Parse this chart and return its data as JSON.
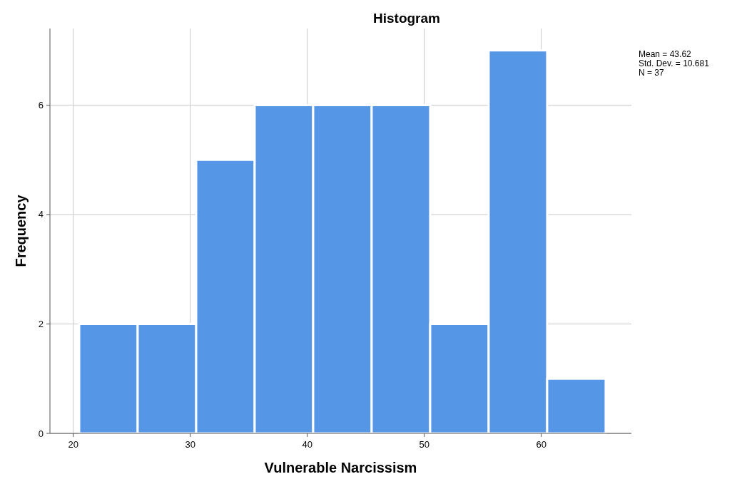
{
  "chart_data": {
    "type": "histogram",
    "title": "Histogram",
    "xlabel": "Vulnerable Narcissism",
    "ylabel": "Frequency",
    "bins": [
      20.5,
      25.5,
      30.5,
      35.5,
      40.5,
      45.5,
      50.5,
      55.5,
      60.5,
      65.5
    ],
    "values": [
      2,
      2,
      5,
      6,
      6,
      6,
      2,
      7,
      1
    ],
    "color": "#5596e6",
    "xlim": [
      18,
      67.7
    ],
    "xticks": [
      20,
      30,
      40,
      50,
      60
    ],
    "ylim": [
      0,
      7.4
    ],
    "yticks": [
      0,
      2,
      4,
      6
    ],
    "grid": true,
    "annotations": [
      "Mean = 43.62",
      "Std. Dev. = 10.681",
      "N = 37"
    ]
  }
}
